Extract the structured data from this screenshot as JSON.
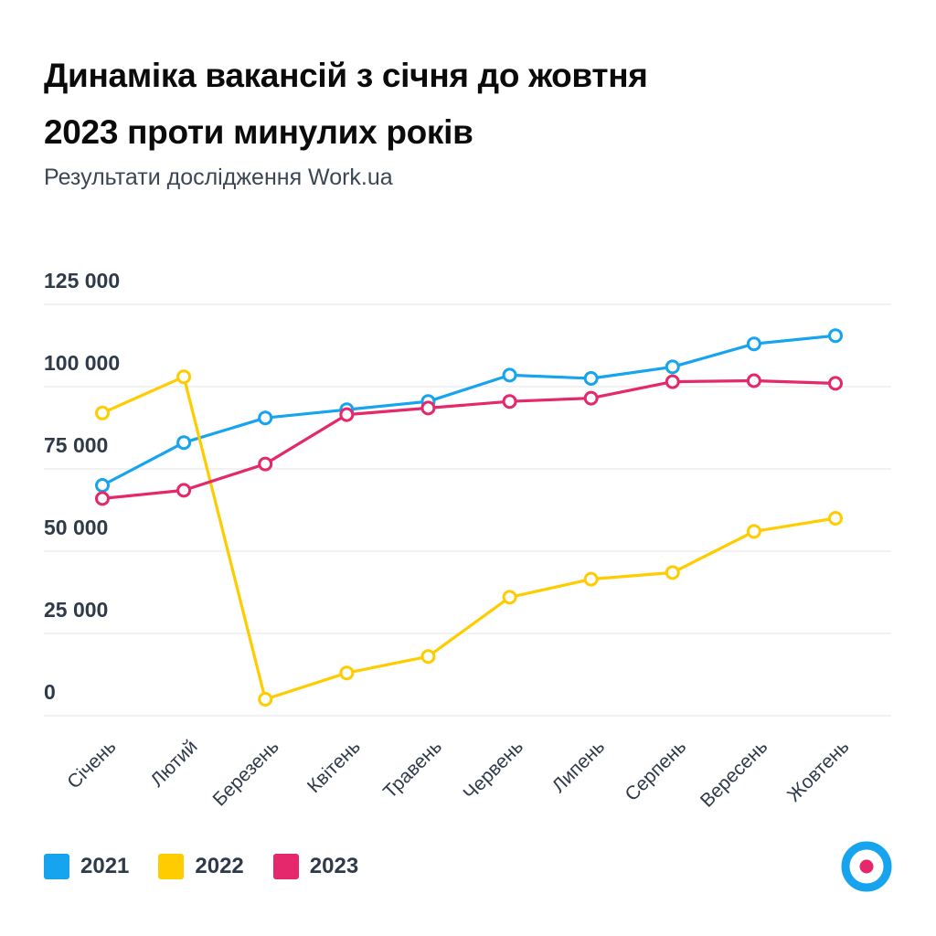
{
  "title_line1": "Динаміка вакансій з січня до жовтня",
  "title_line2": "2023 проти минулих років",
  "subtitle": "Результати дослідження Work.ua",
  "colors": {
    "s2021": "#16a4ee",
    "s2022": "#ffcc00",
    "s2023": "#e4286b",
    "grid": "#e6e6e6",
    "logo_outer": "#16a4ee",
    "logo_inner": "#e4286b"
  },
  "logo_icon": "work-ua-logo-icon",
  "chart_data": {
    "type": "line",
    "title": "Динаміка вакансій з січня до жовтня 2023 проти минулих років",
    "subtitle": "Результати дослідження Work.ua",
    "categories": [
      "Січень",
      "Лютий",
      "Березень",
      "Квітень",
      "Травень",
      "Червень",
      "Липень",
      "Серпень",
      "Вересень",
      "Жовтень"
    ],
    "y_ticks": [
      {
        "value": 0,
        "label": "0"
      },
      {
        "value": 25000,
        "label": "25 000"
      },
      {
        "value": 50000,
        "label": "50 000"
      },
      {
        "value": 75000,
        "label": "75 000"
      },
      {
        "value": 100000,
        "label": "100 000"
      },
      {
        "value": 125000,
        "label": "125 000"
      }
    ],
    "ylim": [
      0,
      125000
    ],
    "grid": true,
    "legend_position": "bottom-left",
    "series": [
      {
        "name": "2021",
        "color": "#16a4ee",
        "values": [
          70000,
          83000,
          90500,
          93000,
          95500,
          103500,
          102500,
          106000,
          113000,
          115500
        ]
      },
      {
        "name": "2022",
        "color": "#ffcc00",
        "values": [
          92000,
          103000,
          5000,
          13000,
          18000,
          36000,
          41500,
          43500,
          56000,
          60000
        ]
      },
      {
        "name": "2023",
        "color": "#e4286b",
        "values": [
          66000,
          68500,
          76500,
          91500,
          93500,
          95500,
          96500,
          101500,
          101800,
          101000
        ]
      }
    ]
  }
}
